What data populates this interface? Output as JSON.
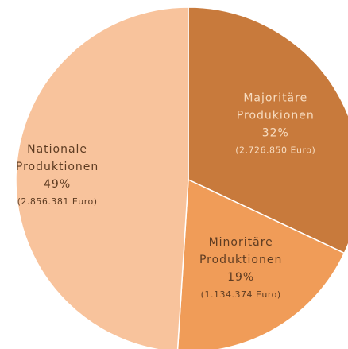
{
  "chart_data": {
    "type": "pie",
    "categories": [
      [
        "Majoritäre",
        "Produkionen"
      ],
      [
        "Minoritäre",
        "Produktionen"
      ],
      [
        "Nationale",
        "Produktionen"
      ]
    ],
    "values": [
      32,
      19,
      49
    ],
    "value_labels": [
      "32%",
      "19%",
      "49%"
    ],
    "amount_labels": [
      "(2.726.850 Euro)",
      "(1.134.374 Euro)",
      "(2.856.381 Euro)"
    ],
    "colors": [
      "#c87a3c",
      "#f09c58",
      "#f8c39c"
    ]
  }
}
